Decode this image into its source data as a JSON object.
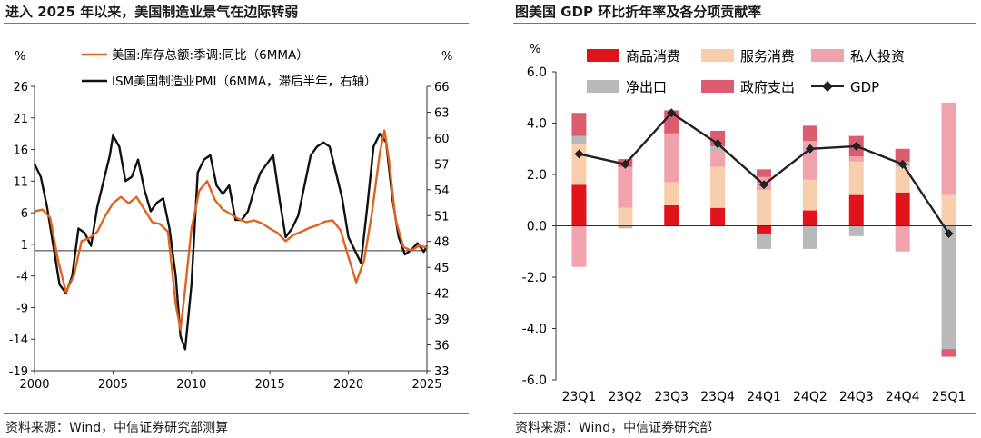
{
  "left": {
    "title": "进入 2025 年以来，美国制造业景气在边际转弱",
    "source": "资料来源：Wind，中信证券研究部测算",
    "chart_data": {
      "type": "line",
      "title": "进入 2025 年以来，美国制造业景气在边际转弱",
      "xlabel": "",
      "x_ticks": [
        "2000",
        "2005",
        "2010",
        "2015",
        "2020",
        "2025"
      ],
      "xlim": [
        2000,
        2025
      ],
      "left_axis": {
        "unit": "%",
        "ylim": [
          -19,
          26
        ],
        "ticks": [
          "26",
          "21",
          "16",
          "11",
          "6",
          "1",
          "-4",
          "-9",
          "-14",
          "-19"
        ]
      },
      "right_axis": {
        "unit": "%",
        "ylim": [
          33,
          66
        ],
        "ticks": [
          "66",
          "63",
          "60",
          "57",
          "54",
          "51",
          "48",
          "45",
          "42",
          "39",
          "36",
          "33"
        ]
      },
      "series": [
        {
          "name": "美国:库存总额:季调:同比（6MMA）",
          "color": "#e06420",
          "axis": "left",
          "x": [
            2000.0,
            2000.5,
            2001.0,
            2001.5,
            2002.0,
            2002.5,
            2003.0,
            2003.5,
            2004.0,
            2004.5,
            2005.0,
            2005.5,
            2006.0,
            2006.5,
            2007.0,
            2007.5,
            2008.0,
            2008.5,
            2009.0,
            2009.3,
            2009.6,
            2010.0,
            2010.5,
            2011.0,
            2011.5,
            2012.0,
            2012.5,
            2013.0,
            2013.5,
            2014.0,
            2014.5,
            2015.0,
            2015.5,
            2016.0,
            2016.5,
            2017.0,
            2017.5,
            2018.0,
            2018.5,
            2019.0,
            2019.5,
            2020.0,
            2020.5,
            2021.0,
            2021.5,
            2022.0,
            2022.3,
            2022.6,
            2023.0,
            2023.5,
            2024.0,
            2024.5,
            2025.0
          ],
          "values": [
            6.2,
            6.5,
            5.2,
            -1.5,
            -6.5,
            -4.0,
            1.5,
            2.0,
            3.0,
            5.5,
            7.5,
            8.5,
            7.5,
            8.5,
            6.5,
            4.5,
            4.2,
            3.0,
            -8.5,
            -12.5,
            -6.0,
            3.5,
            9.5,
            11.0,
            8.0,
            6.5,
            5.8,
            5.0,
            4.5,
            4.8,
            4.3,
            3.5,
            2.8,
            1.5,
            2.5,
            3.0,
            3.6,
            4.0,
            4.6,
            4.8,
            3.2,
            -1.0,
            -5.0,
            -1.5,
            6.0,
            15.5,
            19.0,
            14.0,
            5.0,
            0.6,
            0.0,
            0.8,
            0.5
          ]
        },
        {
          "name": "ISM美国制造业PMI（6MMA，滞后半年，右轴）",
          "color": "#111111",
          "axis": "right",
          "x": [
            2000.0,
            2000.4,
            2000.8,
            2001.2,
            2001.6,
            2002.0,
            2002.4,
            2002.8,
            2003.2,
            2003.6,
            2004.0,
            2004.4,
            2004.8,
            2005.0,
            2005.4,
            2005.8,
            2006.2,
            2006.6,
            2007.0,
            2007.4,
            2007.8,
            2008.2,
            2008.6,
            2009.0,
            2009.3,
            2009.6,
            2010.0,
            2010.4,
            2010.8,
            2011.2,
            2011.6,
            2012.0,
            2012.4,
            2012.8,
            2013.2,
            2013.6,
            2014.0,
            2014.4,
            2014.8,
            2015.2,
            2015.6,
            2016.0,
            2016.4,
            2016.8,
            2017.2,
            2017.6,
            2018.0,
            2018.4,
            2018.8,
            2019.2,
            2019.6,
            2020.0,
            2020.4,
            2020.8,
            2021.2,
            2021.6,
            2022.0,
            2022.4,
            2022.8,
            2023.2,
            2023.6,
            2024.0,
            2024.4,
            2024.8,
            2025.0
          ],
          "values": [
            57.0,
            55.5,
            52.0,
            47.5,
            43.0,
            42.0,
            44.0,
            49.5,
            49.0,
            47.5,
            52.0,
            55.0,
            58.0,
            60.3,
            59.0,
            55.0,
            55.5,
            57.5,
            54.0,
            51.5,
            52.5,
            53.0,
            49.5,
            44.0,
            37.0,
            35.5,
            43.0,
            56.0,
            57.5,
            58.0,
            54.5,
            53.5,
            54.5,
            50.5,
            50.5,
            51.5,
            54.0,
            56.0,
            57.0,
            58.0,
            53.0,
            48.5,
            49.5,
            51.0,
            54.5,
            58.0,
            59.0,
            59.5,
            59.0,
            56.0,
            53.0,
            48.5,
            47.0,
            45.5,
            52.0,
            59.0,
            60.5,
            59.5,
            53.0,
            48.5,
            46.5,
            47.0,
            47.8,
            46.8,
            47.5
          ]
        }
      ],
      "legend": "top-left",
      "grid": false
    }
  },
  "right": {
    "title": "图美国 GDP 环比折年率及各分项贡献率",
    "source": "资料来源：Wind，中信证券研究部",
    "chart_data": {
      "type": "bar",
      "stacked": true,
      "title": "图美国 GDP 环比折年率及各分项贡献率",
      "categories": [
        "23Q1",
        "23Q2",
        "23Q3",
        "23Q4",
        "24Q1",
        "24Q2",
        "24Q3",
        "24Q4",
        "25Q1"
      ],
      "ylabel": "%",
      "ylim": [
        -6.0,
        6.0
      ],
      "y_ticks": [
        "6.0",
        "4.0",
        "2.0",
        "0.0",
        "-2.0",
        "-4.0",
        "-6.0"
      ],
      "series": [
        {
          "name": "商品消费",
          "color": "#e2141b",
          "values": [
            1.6,
            0.0,
            0.8,
            0.7,
            -0.3,
            0.6,
            1.2,
            1.3,
            0.0
          ]
        },
        {
          "name": "服务消费",
          "color": "#f8cfac",
          "values": [
            1.6,
            0.7,
            0.9,
            1.6,
            1.4,
            1.2,
            1.3,
            1.0,
            1.2
          ]
        },
        {
          "name": "私人投资",
          "color": "#f0a2ad",
          "values": [
            -1.6,
            1.6,
            1.9,
            0.6,
            0.5,
            1.5,
            0.2,
            -1.0,
            3.6
          ]
        },
        {
          "name": "净出口",
          "color": "#b9b9b9",
          "values": [
            0.3,
            -0.1,
            0.0,
            0.2,
            -0.6,
            -0.9,
            -0.4,
            0.2,
            -4.8
          ]
        },
        {
          "name": "政府支出",
          "color": "#dc5d70",
          "values": [
            0.9,
            0.3,
            0.9,
            0.6,
            0.3,
            0.6,
            0.8,
            0.5,
            -0.3
          ]
        }
      ],
      "line": {
        "name": "GDP",
        "color": "#222222",
        "values": [
          2.8,
          2.4,
          4.4,
          3.2,
          1.6,
          3.0,
          3.1,
          2.4,
          -0.3
        ]
      },
      "legend": "top",
      "grid": false
    }
  }
}
